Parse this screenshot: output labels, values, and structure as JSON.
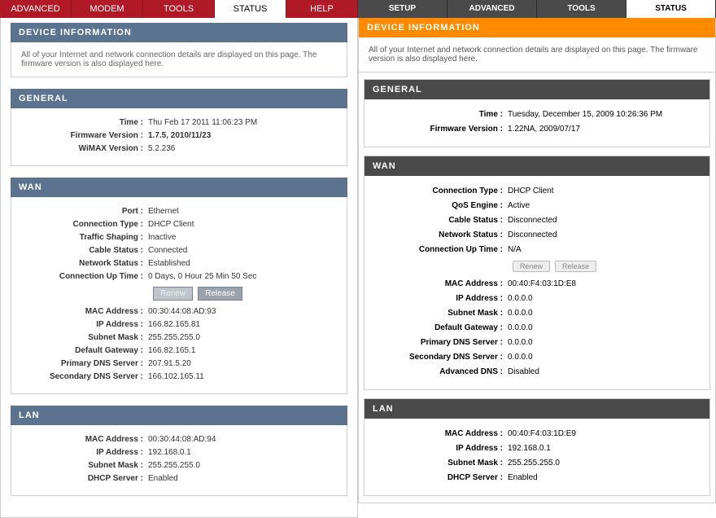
{
  "left": {
    "tabs": [
      "ADVANCED",
      "MODEM",
      "TOOLS",
      "STATUS",
      "HELP"
    ],
    "active_tab": "STATUS",
    "title": "DEVICE INFORMATION",
    "desc": "All of your Internet and network connection details are displayed on this page. The firmware version is also displayed here.",
    "general": {
      "title": "GENERAL",
      "time_k": "Time :",
      "time_v": "Thu Feb 17 2011 11:06:23 PM",
      "fw_k": "Firmware Version :",
      "fw_v": "1.7.5,  2010/11/23",
      "wimax_k": "WiMAX Version :",
      "wimax_v": "5.2.236"
    },
    "wan": {
      "title": "WAN",
      "rows1": [
        {
          "k": "Port :",
          "v": "Ethernet"
        },
        {
          "k": "Connection Type :",
          "v": "DHCP Client"
        },
        {
          "k": "Traffic Shaping :",
          "v": "Inactive"
        },
        {
          "k": "Cable Status :",
          "v": "Connected"
        },
        {
          "k": "Network Status :",
          "v": "Established"
        },
        {
          "k": "Connection Up Time :",
          "v": "0 Days, 0 Hour 25 Min 50 Sec"
        }
      ],
      "btn_renew": "Renew",
      "btn_release": "Release",
      "rows2": [
        {
          "k": "MAC Address :",
          "v": "00:30:44:08:AD:93"
        },
        {
          "k": "IP Address :",
          "v": "166.82.165.81"
        },
        {
          "k": "Subnet Mask :",
          "v": "255.255.255.0"
        },
        {
          "k": "Default Gateway :",
          "v": "166.82.165.1"
        },
        {
          "k": "Primary DNS Server :",
          "v": "207.91.5.20"
        },
        {
          "k": "Secondary DNS Server :",
          "v": "166.102.165.11"
        }
      ]
    },
    "lan": {
      "title": "LAN",
      "rows": [
        {
          "k": "MAC Address :",
          "v": "00:30:44:08:AD:94"
        },
        {
          "k": "IP Address :",
          "v": "192.168.0.1"
        },
        {
          "k": "Subnet Mask :",
          "v": "255.255.255.0"
        },
        {
          "k": "DHCP Server :",
          "v": "Enabled"
        }
      ]
    }
  },
  "right": {
    "tabs": [
      "SETUP",
      "ADVANCED",
      "TOOLS",
      "STATUS"
    ],
    "active_tab": "STATUS",
    "title": "DEVICE INFORMATION",
    "desc": "All of your Internet and network connection details are displayed on this page. The firmware version is also displayed here.",
    "general": {
      "title": "GENERAL",
      "time_k": "Time :",
      "time_v": "Tuesday, December 15, 2009 10:26:36 PM",
      "fw_k": "Firmware Version :",
      "fw_v": "1.22NA,  2009/07/17"
    },
    "wan": {
      "title": "WAN",
      "rows1": [
        {
          "k": "Connection Type :",
          "v": "DHCP Client"
        },
        {
          "k": "QoS Engine :",
          "v": "Active"
        },
        {
          "k": "Cable Status :",
          "v": "Disconnected"
        },
        {
          "k": "Network Status :",
          "v": "Disconnected"
        },
        {
          "k": "Connection Up Time :",
          "v": "N/A"
        }
      ],
      "btn_renew": "Renew",
      "btn_release": "Release",
      "rows2": [
        {
          "k": "MAC Address :",
          "v": "00:40:F4:03:1D:E8"
        },
        {
          "k": "IP Address :",
          "v": "0.0.0.0"
        },
        {
          "k": "Subnet Mask :",
          "v": "0.0.0.0"
        },
        {
          "k": "Default Gateway :",
          "v": "0.0.0.0"
        },
        {
          "k": "Primary DNS Server :",
          "v": "0.0.0.0"
        },
        {
          "k": "Secondary DNS Server :",
          "v": "0.0.0.0"
        },
        {
          "k": "Advanced DNS :",
          "v": "Disabled"
        }
      ]
    },
    "lan": {
      "title": "LAN",
      "rows": [
        {
          "k": "MAC Address :",
          "v": "00:40:F4:03:1D:E9"
        },
        {
          "k": "IP Address :",
          "v": "192.168.0.1"
        },
        {
          "k": "Subnet Mask :",
          "v": "255.255.255.0"
        },
        {
          "k": "DHCP Server :",
          "v": "Enabled"
        }
      ]
    }
  }
}
